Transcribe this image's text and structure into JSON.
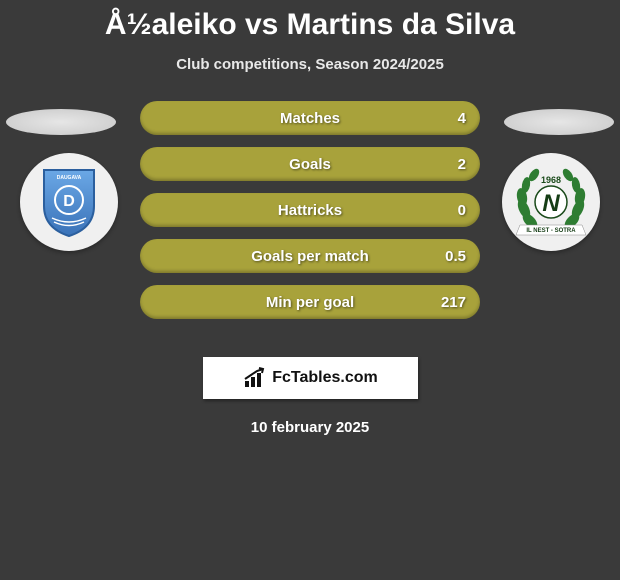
{
  "title": "Å½aleiko vs Martins da Silva",
  "subtitle": "Club competitions, Season 2024/2025",
  "stats": [
    {
      "label": "Matches",
      "value": "4"
    },
    {
      "label": "Goals",
      "value": "2"
    },
    {
      "label": "Hattricks",
      "value": "0"
    },
    {
      "label": "Goals per match",
      "value": "0.5"
    },
    {
      "label": "Min per goal",
      "value": "217"
    }
  ],
  "row_color": "#a8a23b",
  "left_team": {
    "crest_primary": "#4a8fd6",
    "crest_secondary": "#2b5f9e",
    "crest_label": "DAUGAVA",
    "crest_letter": "D"
  },
  "right_team": {
    "wreath_color": "#2e7d32",
    "year": "1968",
    "letter": "N",
    "banner_text": "IL NEST - SOTRA"
  },
  "brand": "FcTables.com",
  "date": "10 february 2025"
}
